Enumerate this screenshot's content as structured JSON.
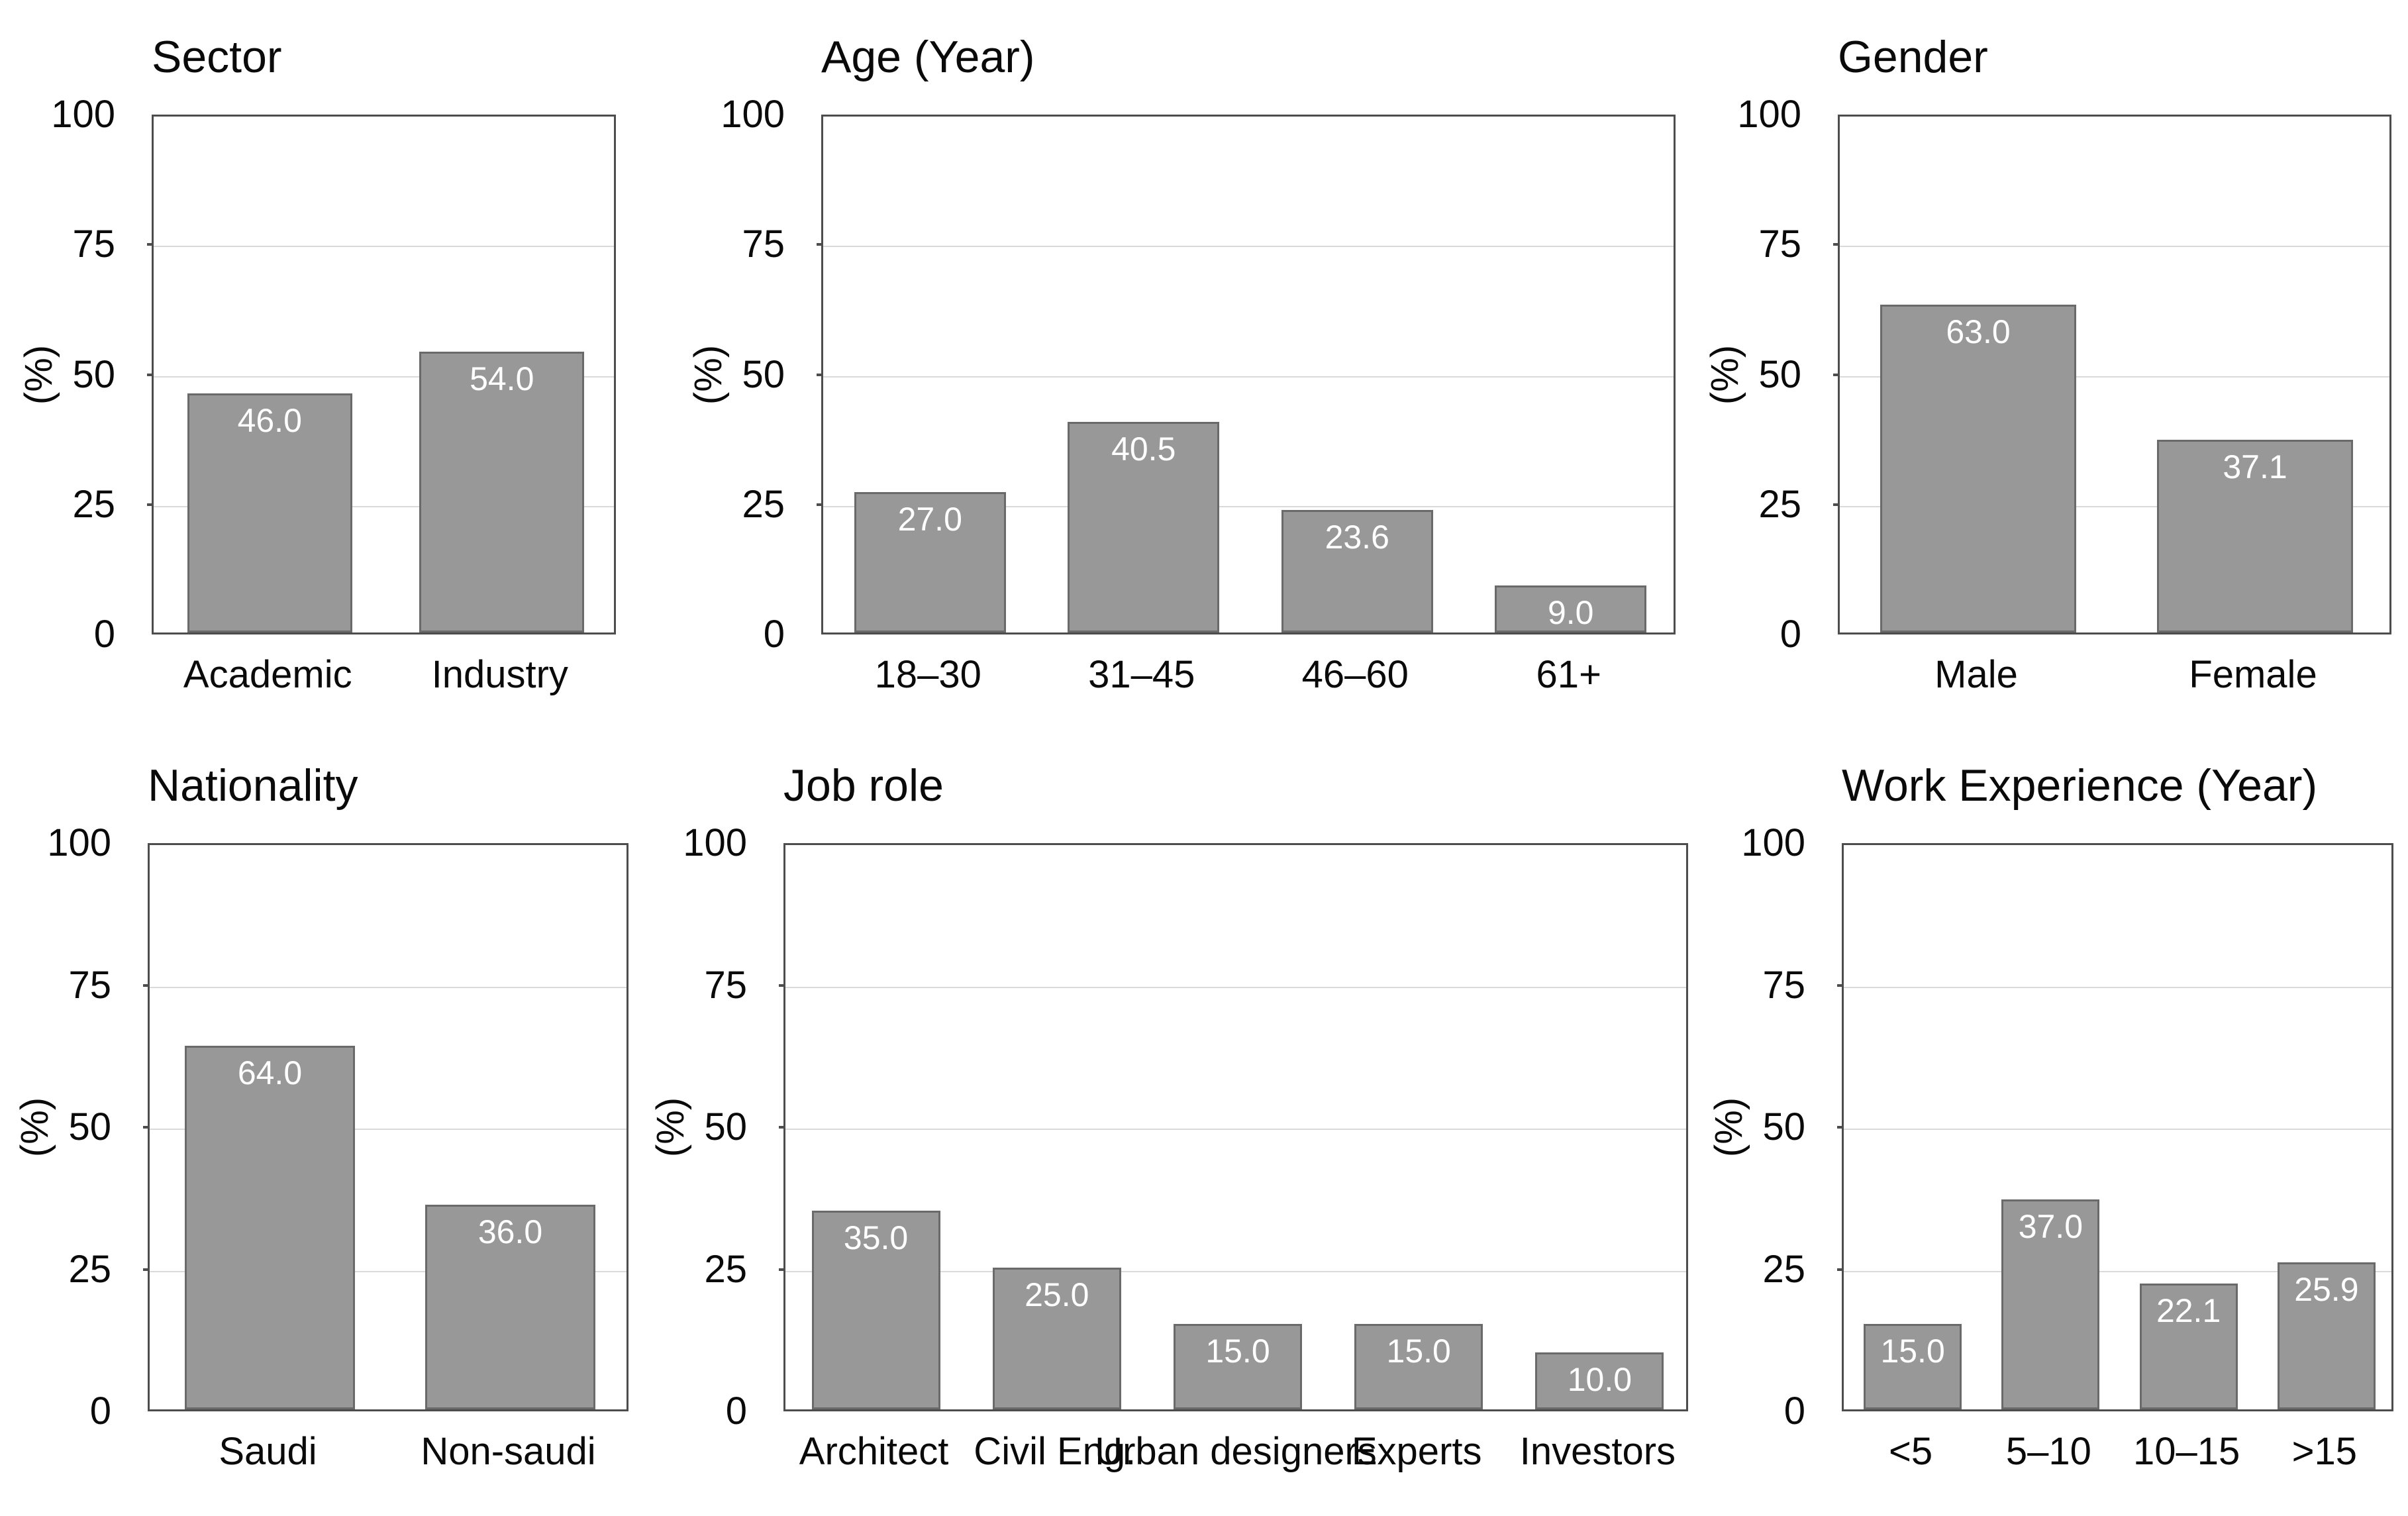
{
  "figure": {
    "background": "#ffffff",
    "description_texts": {
      "percent_axis_label": "(%)"
    }
  },
  "colors": {
    "bar_fill": "#989898",
    "bar_border": "#6a6a6a",
    "plot_border": "#4d4d4d",
    "gridline": "#dadada",
    "value_label": "#ffffff",
    "text": "#0a0a0a",
    "background": "#ffffff"
  },
  "chart_data": [
    {
      "id": "sector",
      "type": "bar",
      "title": "Sector",
      "ylabel": "(%)",
      "xlabel": "",
      "ylim": [
        0,
        100
      ],
      "yticks": [
        0,
        25,
        50,
        75,
        100
      ],
      "ytick_labels": [
        "0",
        "25",
        "50",
        "75",
        "100"
      ],
      "grid": true,
      "legend_position": "none",
      "categories": [
        "Academic",
        "Industry"
      ],
      "values": [
        46.0,
        54.0
      ],
      "value_labels": [
        "46.0",
        "54.0"
      ]
    },
    {
      "id": "age",
      "type": "bar",
      "title": "Age (Year)",
      "ylabel": "(%)",
      "xlabel": "",
      "ylim": [
        0,
        100
      ],
      "yticks": [
        0,
        25,
        50,
        75,
        100
      ],
      "ytick_labels": [
        "0",
        "25",
        "50",
        "75",
        "100"
      ],
      "grid": true,
      "legend_position": "none",
      "categories": [
        "18–30",
        "31–45",
        "46–60",
        "61+"
      ],
      "values": [
        27.0,
        40.5,
        23.6,
        9.0
      ],
      "value_labels": [
        "27.0",
        "40.5",
        "23.6",
        "9.0"
      ]
    },
    {
      "id": "gender",
      "type": "bar",
      "title": "Gender",
      "ylabel": "(%)",
      "xlabel": "",
      "ylim": [
        0,
        100
      ],
      "yticks": [
        0,
        25,
        50,
        75,
        100
      ],
      "ytick_labels": [
        "0",
        "25",
        "50",
        "75",
        "100"
      ],
      "grid": true,
      "legend_position": "none",
      "categories": [
        "Male",
        "Female"
      ],
      "values": [
        63.0,
        37.1
      ],
      "value_labels": [
        "63.0",
        "37.1"
      ]
    },
    {
      "id": "nationality",
      "type": "bar",
      "title": "Nationality",
      "ylabel": "(%)",
      "xlabel": "",
      "ylim": [
        0,
        100
      ],
      "yticks": [
        0,
        25,
        50,
        75,
        100
      ],
      "ytick_labels": [
        "0",
        "25",
        "50",
        "75",
        "100"
      ],
      "grid": true,
      "legend_position": "none",
      "categories": [
        "Saudi",
        "Non-saudi"
      ],
      "values": [
        64.0,
        36.0
      ],
      "value_labels": [
        "64.0",
        "36.0"
      ]
    },
    {
      "id": "job-role",
      "type": "bar",
      "title": "Job role",
      "ylabel": "(%)",
      "xlabel": "",
      "ylim": [
        0,
        100
      ],
      "yticks": [
        0,
        25,
        50,
        75,
        100
      ],
      "ytick_labels": [
        "0",
        "25",
        "50",
        "75",
        "100"
      ],
      "grid": true,
      "legend_position": "none",
      "categories": [
        "Architect",
        "Civil Eng.",
        "Urban designers",
        "Experts",
        "Investors"
      ],
      "values": [
        35.0,
        25.0,
        15.0,
        15.0,
        10.0
      ],
      "value_labels": [
        "35.0",
        "25.0",
        "15.0",
        "15.0",
        "10.0"
      ]
    },
    {
      "id": "work-experience",
      "type": "bar",
      "title": "Work Experience (Year)",
      "ylabel": "(%)",
      "xlabel": "",
      "ylim": [
        0,
        100
      ],
      "yticks": [
        0,
        25,
        50,
        75,
        100
      ],
      "ytick_labels": [
        "0",
        "25",
        "50",
        "75",
        "100"
      ],
      "grid": true,
      "legend_position": "none",
      "categories": [
        "<5",
        "5–10",
        "10–15",
        ">15"
      ],
      "values": [
        15.0,
        37.0,
        22.1,
        25.9
      ],
      "value_labels": [
        "15.0",
        "37.0",
        "22.1",
        "25.9"
      ]
    }
  ]
}
